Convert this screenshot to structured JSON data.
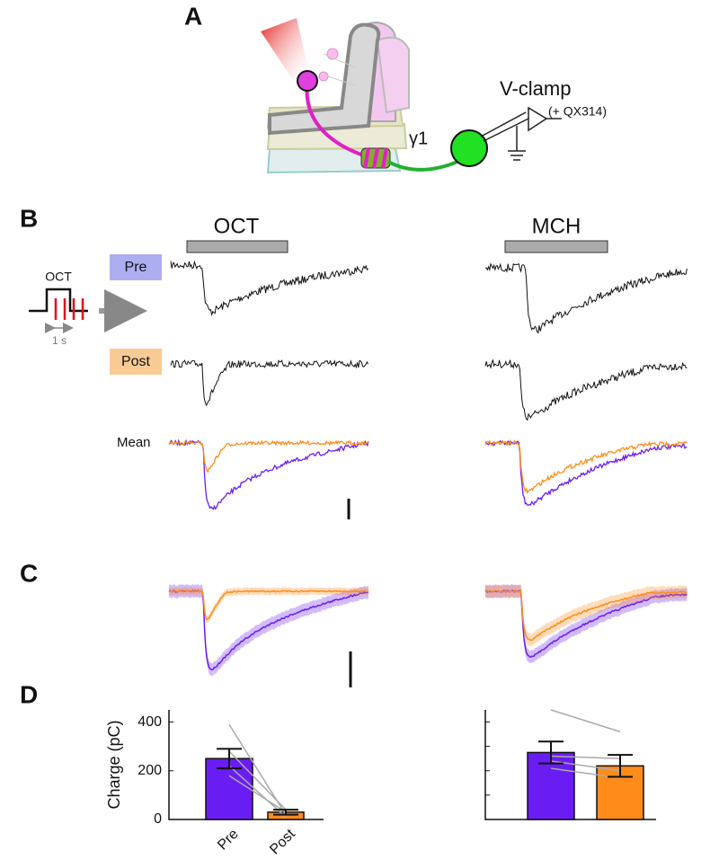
{
  "panels": {
    "a": "A",
    "b": "B",
    "c": "C",
    "d": "D"
  },
  "diagram": {
    "compartment": "γ1",
    "recording": "V-clamp",
    "drug": "(+ QX314)"
  },
  "stimulus": {
    "odor": "OCT",
    "duration": "1 s"
  },
  "columns": [
    "OCT",
    "MCH"
  ],
  "rows": {
    "pre": "Pre",
    "post": "Post",
    "mean": "Mean"
  },
  "chart_data": [
    {
      "type": "bar",
      "ylabel": "Charge (pC)",
      "categories": [
        "Pre",
        "Post"
      ],
      "values": [
        250,
        30
      ],
      "errors": [
        40,
        10
      ],
      "colors": [
        "#6a1df2",
        "#ff8c1a"
      ],
      "pairs": [
        [
          390,
          20
        ],
        [
          280,
          40
        ],
        [
          220,
          10
        ],
        [
          180,
          30
        ]
      ],
      "ylim": [
        0,
        450
      ],
      "yticks": [
        0,
        200,
        400
      ],
      "tick_labels": true
    },
    {
      "type": "bar",
      "categories": [
        null,
        null
      ],
      "values": [
        275,
        220
      ],
      "errors": [
        45,
        45
      ],
      "colors": [
        "#6a1df2",
        "#ff8c1a"
      ],
      "pairs": [
        [
          450,
          360
        ],
        [
          260,
          250
        ],
        [
          240,
          200
        ],
        [
          210,
          170
        ]
      ],
      "ylim": [
        0,
        450
      ],
      "yticks": [
        0,
        100,
        200,
        300,
        400
      ],
      "tick_labels": false
    }
  ]
}
